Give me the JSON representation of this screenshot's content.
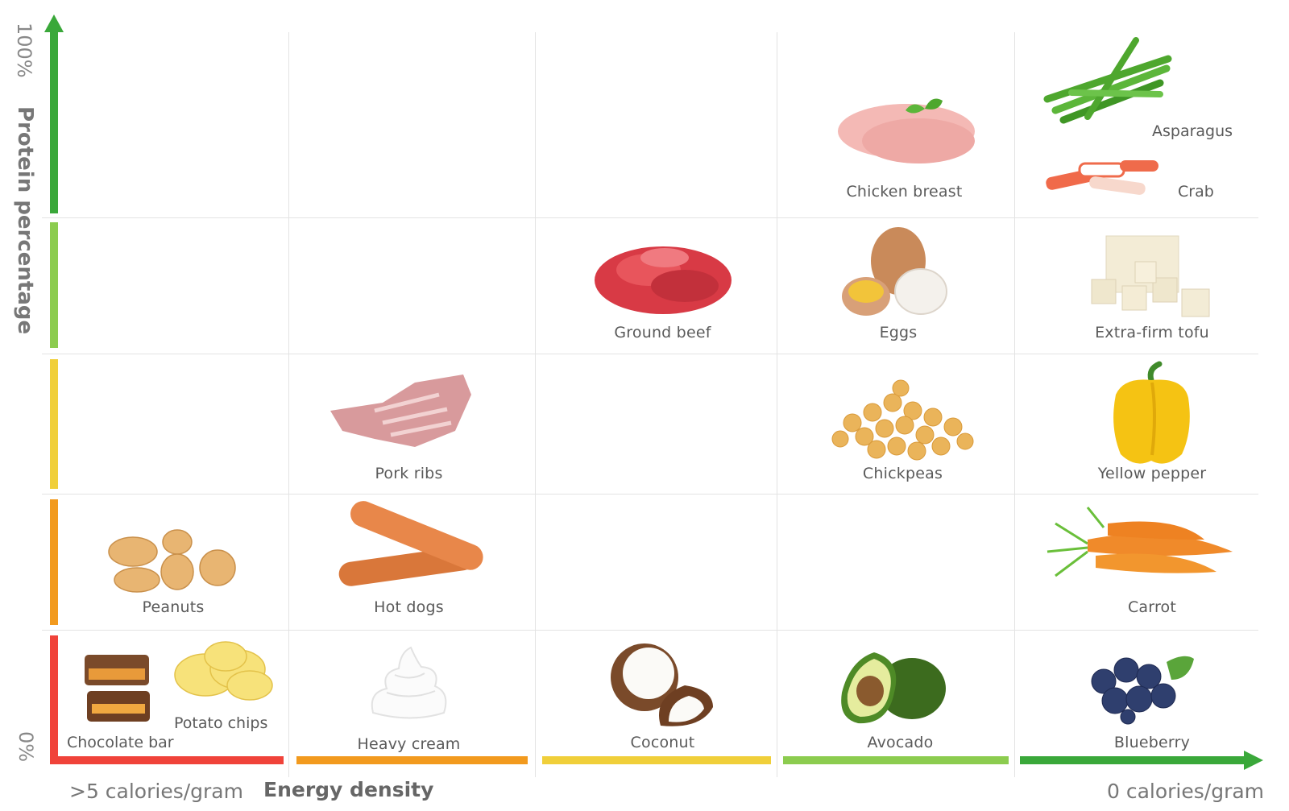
{
  "y_axis": {
    "top_label": "100%",
    "bottom_label": "0%",
    "title": "Protein percentage",
    "band_colors": [
      "#3aa83a",
      "#8ccc4f",
      "#f0cf3a",
      "#f29a1e",
      "#f0433a"
    ]
  },
  "x_axis": {
    "left_label": ">5 calories/gram",
    "title": "Energy density",
    "right_label": "0 calories/gram",
    "band_colors": [
      "#f0433a",
      "#f29a1e",
      "#f0cf3a",
      "#8ccc4f",
      "#3aa83a"
    ]
  },
  "foods": {
    "asparagus": "Asparagus",
    "crab": "Crab",
    "chicken_breast": "Chicken breast",
    "ground_beef": "Ground beef",
    "eggs": "Eggs",
    "extra_firm_tofu": "Extra-firm tofu",
    "pork_ribs": "Pork ribs",
    "chickpeas": "Chickpeas",
    "yellow_pepper": "Yellow pepper",
    "peanuts": "Peanuts",
    "hot_dogs": "Hot dogs",
    "carrot": "Carrot",
    "chocolate_bar": "Chocolate bar",
    "potato_chips": "Potato chips",
    "heavy_cream": "Heavy cream",
    "coconut": "Coconut",
    "avocado": "Avocado",
    "blueberry": "Blueberry"
  }
}
